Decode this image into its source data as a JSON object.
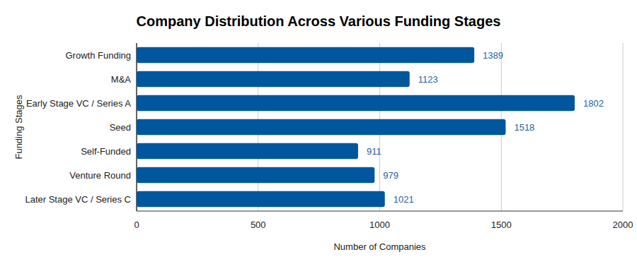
{
  "chart_data": {
    "type": "bar",
    "orientation": "horizontal",
    "title": "Company Distribution Across Various Funding Stages",
    "xlabel": "Number of Companies",
    "ylabel": "Funding Stages",
    "categories": [
      "Growth Funding",
      "M&A",
      "Early Stage VC / Series A",
      "Seed",
      "Self-Funded",
      "Venture Round",
      "Later Stage VC / Series C"
    ],
    "values": [
      1389,
      1123,
      1802,
      1518,
      911,
      979,
      1021
    ],
    "color": "#00579e",
    "xlim": [
      0,
      2000
    ],
    "xticks": [
      0,
      500,
      1000,
      1500,
      2000
    ],
    "grid": true,
    "data_labels": true
  }
}
